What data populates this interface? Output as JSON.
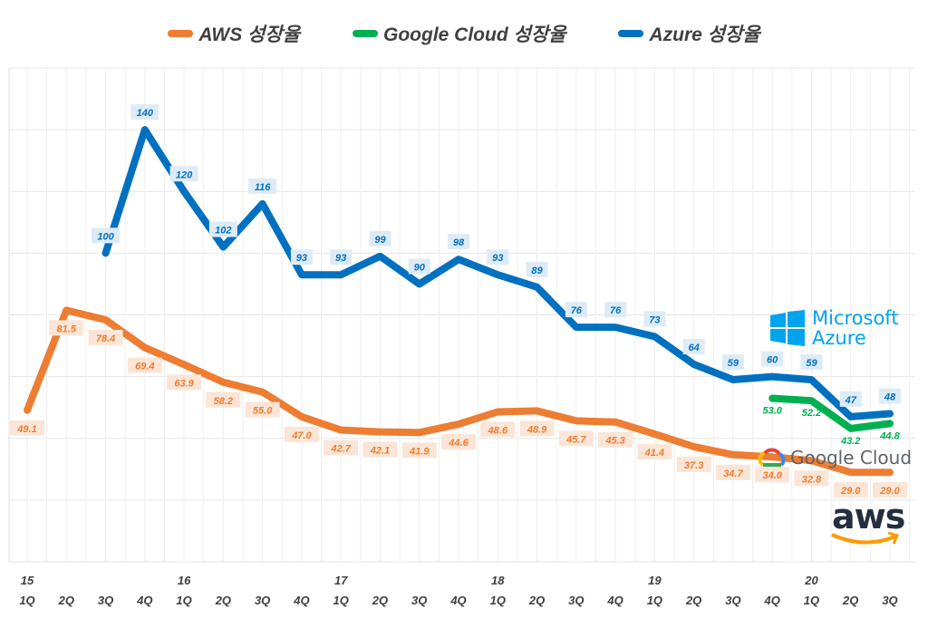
{
  "chart_data": {
    "type": "line",
    "title": "",
    "xlabel": "",
    "ylabel": "",
    "ylim": [
      0,
      160
    ],
    "y_gridlines_every": 20,
    "y_tick_labels_visible": false,
    "grid": true,
    "legend_position": "top-center",
    "categories": [
      "1Q",
      "2Q",
      "3Q",
      "4Q",
      "1Q",
      "2Q",
      "3Q",
      "4Q",
      "1Q",
      "2Q",
      "3Q",
      "4Q",
      "1Q",
      "2Q",
      "3Q",
      "4Q",
      "1Q",
      "2Q",
      "3Q",
      "4Q",
      "1Q",
      "2Q",
      "3Q"
    ],
    "years": [
      {
        "label": "15",
        "index": 0
      },
      {
        "label": "16",
        "index": 4
      },
      {
        "label": "17",
        "index": 8
      },
      {
        "label": "18",
        "index": 12
      },
      {
        "label": "19",
        "index": 16
      },
      {
        "label": "20",
        "index": 20
      }
    ],
    "series": [
      {
        "name": "AWS 성장율",
        "color": "#ED7D31",
        "label_bg": "#FBE5D6",
        "label_pos": "below",
        "values": [
          49.1,
          81.5,
          78.4,
          69.4,
          63.9,
          58.2,
          55.0,
          47.0,
          42.7,
          42.1,
          41.9,
          44.6,
          48.6,
          48.9,
          45.7,
          45.3,
          41.4,
          37.3,
          34.7,
          34.0,
          32.8,
          29.0,
          29.0
        ],
        "labels": [
          "49.1",
          "81.5",
          "78.4",
          "69.4",
          "63.9",
          "58.2",
          "55.0",
          "47.0",
          "42.7",
          "42.1",
          "41.9",
          "44.6",
          "48.6",
          "48.9",
          "45.7",
          "45.3",
          "41.4",
          "37.3",
          "34.7",
          "34.0",
          "32.8",
          "29.0",
          "29.0"
        ]
      },
      {
        "name": "Google Cloud 성장율",
        "color": "#00B050",
        "label_bg": "",
        "label_pos": "below",
        "values": [
          null,
          null,
          null,
          null,
          null,
          null,
          null,
          null,
          null,
          null,
          null,
          null,
          null,
          null,
          null,
          null,
          null,
          null,
          null,
          53.0,
          52.2,
          43.2,
          44.8
        ],
        "labels": [
          null,
          null,
          null,
          null,
          null,
          null,
          null,
          null,
          null,
          null,
          null,
          null,
          null,
          null,
          null,
          null,
          null,
          null,
          null,
          "53.0",
          "52.2",
          "43.2",
          "44.8"
        ]
      },
      {
        "name": "Azure 성장율",
        "color": "#0070C0",
        "label_bg": "#DDEBF7",
        "label_pos": "above",
        "values": [
          null,
          null,
          100,
          140,
          120,
          102,
          116,
          93,
          93,
          99,
          90,
          98,
          93,
          89,
          76,
          76,
          73,
          64,
          59,
          60,
          59,
          47,
          48
        ],
        "labels": [
          null,
          null,
          "100",
          "140",
          "120",
          "102",
          "116",
          "93",
          "93",
          "99",
          "90",
          "98",
          "93",
          "89",
          "76",
          "76",
          "73",
          "64",
          "59",
          "60",
          "59",
          "47",
          "48"
        ]
      }
    ]
  },
  "logos": {
    "azure": [
      "Microsoft",
      "Azure"
    ],
    "google": "Google Cloud",
    "aws": "aws"
  }
}
